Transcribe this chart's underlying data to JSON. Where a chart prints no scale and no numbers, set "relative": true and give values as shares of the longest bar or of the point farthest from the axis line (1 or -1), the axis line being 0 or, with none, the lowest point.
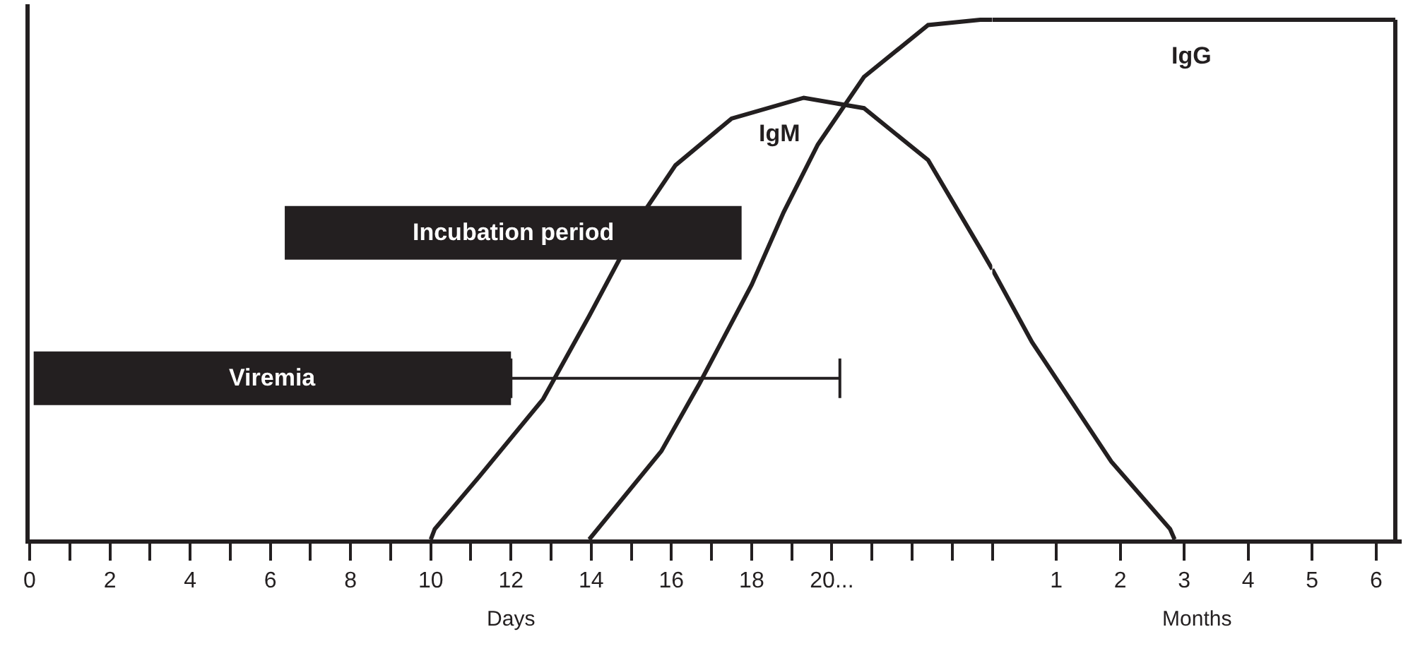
{
  "chart_data": [
    {
      "type": "line",
      "relative": true,
      "xlabel": "Days",
      "xlim": [
        0,
        24
      ],
      "legend": false,
      "marker": "none",
      "line_style": "solid",
      "xticks": [
        0,
        {
          "value": 1,
          "label": null
        },
        2,
        {
          "value": 3,
          "label": null
        },
        4,
        {
          "value": 5,
          "label": null
        },
        6,
        {
          "value": 7,
          "label": null
        },
        8,
        {
          "value": 9,
          "label": null
        },
        10,
        {
          "value": 11,
          "label": null
        },
        12,
        {
          "value": 13,
          "label": null
        },
        14,
        {
          "value": 15,
          "label": null
        },
        16,
        {
          "value": 17,
          "label": null
        },
        18,
        {
          "value": 19,
          "label": null
        },
        {
          "value": 20,
          "label": "20..."
        },
        {
          "value": 21,
          "label": null
        },
        {
          "value": 22,
          "label": null
        },
        {
          "value": 23,
          "label": null
        },
        {
          "value": 24,
          "label": null
        }
      ],
      "series": [
        {
          "name": "IgM",
          "color": "#231f20",
          "x": [
            10.0,
            10.1,
            11.2,
            12.8,
            13.95,
            15.4,
            16.1,
            17.5,
            19.3,
            20.8,
            22.4,
            23.7,
            24
          ],
          "values": [
            0,
            0.02,
            0.12,
            0.27,
            0.43,
            0.64,
            0.72,
            0.81,
            0.85,
            0.83,
            0.73,
            0.56,
            0.52
          ]
        },
        {
          "color": "#231f20",
          "x": [
            13.95,
            15.75,
            16.7,
            18.0,
            18.8,
            19.65,
            20.8,
            22.4,
            23.7,
            24
          ],
          "values": [
            0,
            0.17,
            0.3,
            0.49,
            0.63,
            0.76,
            0.89,
            0.99,
            1,
            1
          ]
        },
        {
          "name": "Incubation period",
          "color": "#231f20",
          "x": [
            6.36,
            17.75
          ],
          "values": [
            0.59,
            0.59
          ]
        },
        {
          "name": "Viremia",
          "color": "#231f20",
          "x": [
            0.1,
            12.0
          ],
          "values": [
            0.31,
            0.31
          ],
          "xerrors": [
            null,
            [
              12.0,
              20.2
            ]
          ]
        }
      ]
    },
    {
      "type": "line",
      "relative": true,
      "xlabel": "Months",
      "xlim": [
        0,
        6.4
      ],
      "xticks": [
        1,
        2,
        3,
        4,
        5,
        6
      ],
      "ref_lines": [
        {
          "axis": "x",
          "value": 6.3,
          "color": "#231f20"
        }
      ],
      "legend": false,
      "marker": "none",
      "line_style": "solid",
      "series": [
        {
          "color": "#231f20",
          "x": [
            0,
            0.62,
            1.86,
            2.78,
            2.85
          ],
          "values": [
            0.52,
            0.38,
            0.15,
            0.02,
            0
          ]
        },
        {
          "name": "IgG",
          "color": "#231f20",
          "x": [
            0,
            3.0,
            6.3
          ],
          "values": [
            1,
            1,
            1
          ]
        }
      ]
    }
  ]
}
